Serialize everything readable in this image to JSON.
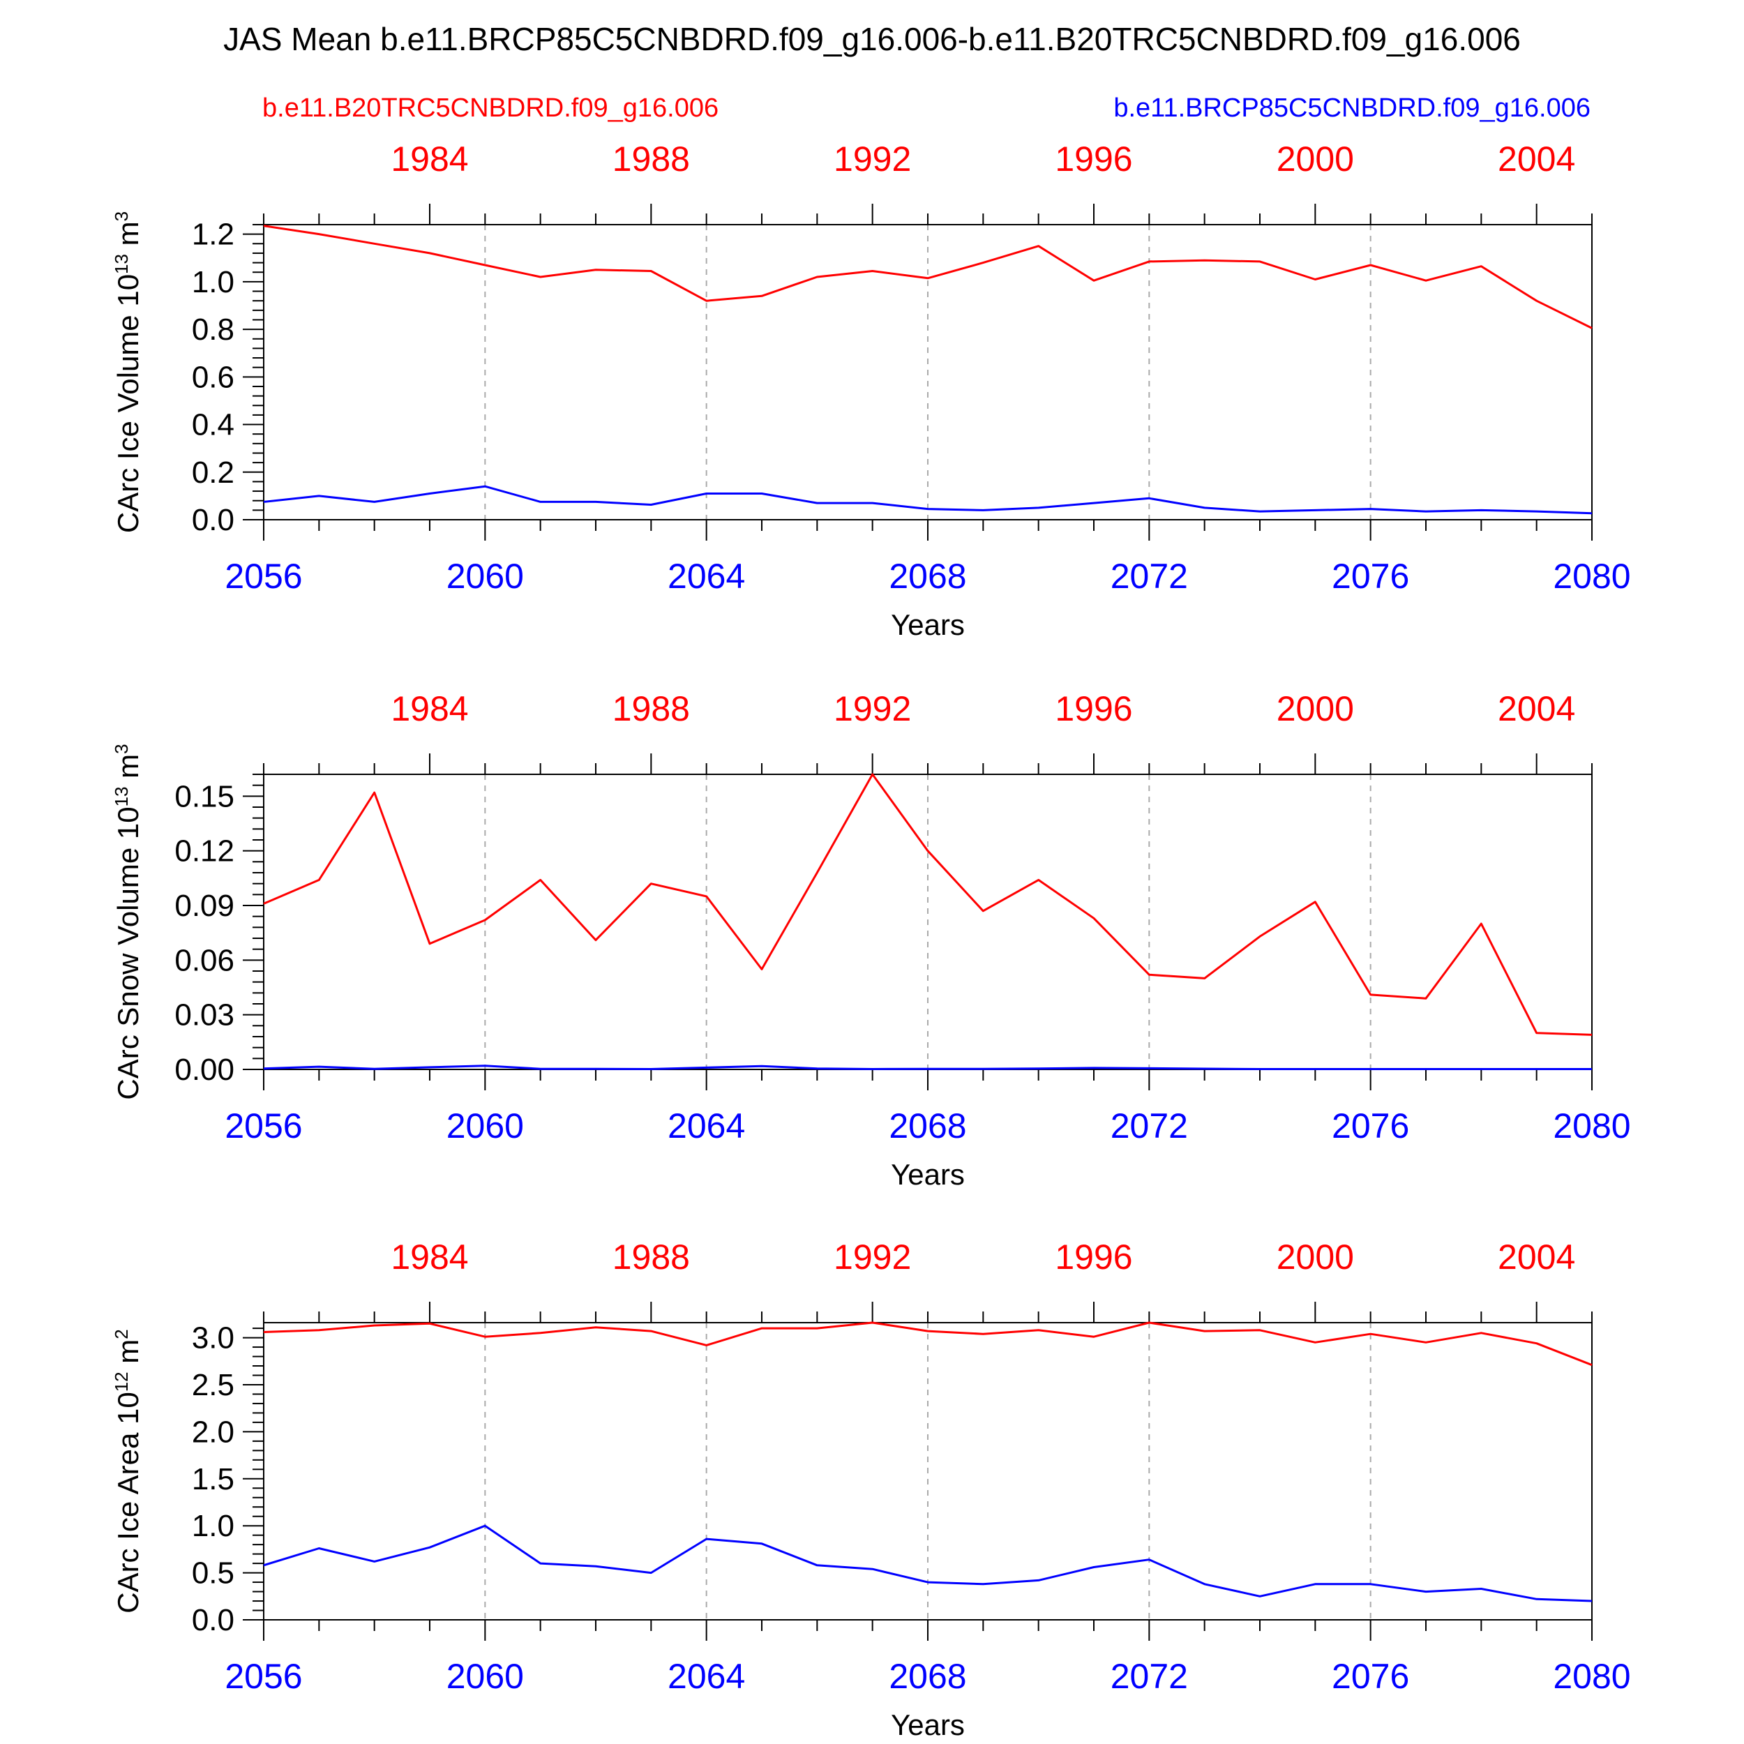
{
  "title": "JAS Mean b.e11.BRCP85C5CNBDRD.f09_g16.006-b.e11.B20TRC5CNBDRD.f09_g16.006",
  "legend": {
    "left": {
      "text": "b.e11.B20TRC5CNBDRD.f09_g16.006",
      "color": "#ff0000"
    },
    "right": {
      "text": "b.e11.BRCP85C5CNBDRD.f09_g16.006",
      "color": "#0000ff"
    }
  },
  "colors": {
    "red": "#ff0000",
    "blue": "#0000ff",
    "axis": "#000000",
    "grid": "#aaaaaa"
  },
  "chart_data": [
    {
      "type": "line",
      "ylabel": "CArc Ice Volume",
      "yunit": "10^13 m^3",
      "yunit_base": "10",
      "yunit_exp": "13",
      "yunit_tail": "m",
      "yunit_tail_exp": "3",
      "xlabel": "Years",
      "xlim": [
        2056,
        2080
      ],
      "ylim": [
        0,
        1.24
      ],
      "yticks": [
        "0.0",
        "0.2",
        "0.4",
        "0.6",
        "0.8",
        "1.0",
        "1.2"
      ],
      "ytick_values": [
        0,
        0.2,
        0.4,
        0.6,
        0.8,
        1.0,
        1.2
      ],
      "xticks_bottom": [
        "2056",
        "2060",
        "2064",
        "2068",
        "2072",
        "2076",
        "2080"
      ],
      "xtick_bottom_values": [
        2056,
        2060,
        2064,
        2068,
        2072,
        2076,
        2080
      ],
      "xticks_top": [
        "1984",
        "1988",
        "1992",
        "1996",
        "2000",
        "2004"
      ],
      "xtick_top_values": [
        1984,
        1988,
        1992,
        1996,
        2000,
        2004
      ],
      "top_axis_offset": 75,
      "x": [
        2056,
        2057,
        2058,
        2059,
        2060,
        2061,
        2062,
        2063,
        2064,
        2065,
        2066,
        2067,
        2068,
        2069,
        2070,
        2071,
        2072,
        2073,
        2074,
        2075,
        2076,
        2077,
        2078,
        2079,
        2080
      ],
      "series": [
        {
          "name": "b.e11.B20TRC5CNBDRD.f09_g16.006",
          "color": "#ff0000",
          "values": [
            1.235,
            1.2,
            1.16,
            1.12,
            1.07,
            1.02,
            1.05,
            1.045,
            0.92,
            0.94,
            1.02,
            1.045,
            1.015,
            1.08,
            1.15,
            1.005,
            1.085,
            1.09,
            1.085,
            1.01,
            1.07,
            1.005,
            1.065,
            0.92,
            0.805
          ]
        },
        {
          "name": "b.e11.BRCP85C5CNBDRD.f09_g16.006",
          "color": "#0000ff",
          "values": [
            0.075,
            0.1,
            0.075,
            0.11,
            0.14,
            0.075,
            0.075,
            0.063,
            0.11,
            0.11,
            0.07,
            0.07,
            0.045,
            0.04,
            0.05,
            0.07,
            0.09,
            0.05,
            0.035,
            0.04,
            0.045,
            0.035,
            0.04,
            0.035,
            0.027
          ]
        }
      ]
    },
    {
      "type": "line",
      "ylabel": "CArc Snow Volume",
      "yunit": "10^13 m^3",
      "yunit_base": "10",
      "yunit_exp": "13",
      "yunit_tail": "m",
      "yunit_tail_exp": "3",
      "xlabel": "Years",
      "xlim": [
        2056,
        2080
      ],
      "ylim": [
        0,
        0.162
      ],
      "yticks": [
        "0.00",
        "0.03",
        "0.06",
        "0.09",
        "0.12",
        "0.15"
      ],
      "ytick_values": [
        0,
        0.03,
        0.06,
        0.09,
        0.12,
        0.15
      ],
      "xticks_bottom": [
        "2056",
        "2060",
        "2064",
        "2068",
        "2072",
        "2076",
        "2080"
      ],
      "xtick_bottom_values": [
        2056,
        2060,
        2064,
        2068,
        2072,
        2076,
        2080
      ],
      "xticks_top": [
        "1984",
        "1988",
        "1992",
        "1996",
        "2000",
        "2004"
      ],
      "xtick_top_values": [
        1984,
        1988,
        1992,
        1996,
        2000,
        2004
      ],
      "top_axis_offset": 75,
      "x": [
        2056,
        2057,
        2058,
        2059,
        2060,
        2061,
        2062,
        2063,
        2064,
        2065,
        2066,
        2067,
        2068,
        2069,
        2070,
        2071,
        2072,
        2073,
        2074,
        2075,
        2076,
        2077,
        2078,
        2079,
        2080
      ],
      "series": [
        {
          "name": "b.e11.B20TRC5CNBDRD.f09_g16.006",
          "color": "#ff0000",
          "values": [
            0.091,
            0.104,
            0.152,
            0.069,
            0.082,
            0.104,
            0.071,
            0.102,
            0.095,
            0.055,
            0.108,
            0.162,
            0.12,
            0.087,
            0.104,
            0.083,
            0.052,
            0.05,
            0.073,
            0.092,
            0.041,
            0.039,
            0.08,
            0.02,
            0.019
          ]
        },
        {
          "name": "b.e11.BRCP85C5CNBDRD.f09_g16.006",
          "color": "#0000ff",
          "values": [
            0.0005,
            0.0015,
            0.0003,
            0.0012,
            0.002,
            0.0003,
            0.0003,
            0.0002,
            0.001,
            0.0018,
            0.0005,
            0.0002,
            0.0003,
            0.0003,
            0.0005,
            0.0008,
            0.0006,
            0.0004,
            0.0002,
            0.0002,
            0.0002,
            0.0002,
            0.0002,
            0.0002,
            0.0002
          ]
        }
      ]
    },
    {
      "type": "line",
      "ylabel": "CArc Ice Area",
      "yunit": "10^12 m^2",
      "yunit_base": "10",
      "yunit_exp": "12",
      "yunit_tail": "m",
      "yunit_tail_exp": "2",
      "xlabel": "Years",
      "xlim": [
        2056,
        2080
      ],
      "ylim": [
        0,
        3.16
      ],
      "yticks": [
        "0.0",
        "0.5",
        "1.0",
        "1.5",
        "2.0",
        "2.5",
        "3.0"
      ],
      "ytick_values": [
        0,
        0.5,
        1.0,
        1.5,
        2.0,
        2.5,
        3.0
      ],
      "xticks_bottom": [
        "2056",
        "2060",
        "2064",
        "2068",
        "2072",
        "2076",
        "2080"
      ],
      "xtick_bottom_values": [
        2056,
        2060,
        2064,
        2068,
        2072,
        2076,
        2080
      ],
      "xticks_top": [
        "1984",
        "1988",
        "1992",
        "1996",
        "2000",
        "2004"
      ],
      "xtick_top_values": [
        1984,
        1988,
        1992,
        1996,
        2000,
        2004
      ],
      "top_axis_offset": 75,
      "x": [
        2056,
        2057,
        2058,
        2059,
        2060,
        2061,
        2062,
        2063,
        2064,
        2065,
        2066,
        2067,
        2068,
        2069,
        2070,
        2071,
        2072,
        2073,
        2074,
        2075,
        2076,
        2077,
        2078,
        2079,
        2080
      ],
      "series": [
        {
          "name": "b.e11.B20TRC5CNBDRD.f09_g16.006",
          "color": "#ff0000",
          "values": [
            3.06,
            3.08,
            3.13,
            3.15,
            3.01,
            3.05,
            3.11,
            3.07,
            2.92,
            3.1,
            3.1,
            3.16,
            3.07,
            3.04,
            3.08,
            3.01,
            3.16,
            3.07,
            3.08,
            2.95,
            3.04,
            2.95,
            3.05,
            2.94,
            2.71
          ]
        },
        {
          "name": "b.e11.BRCP85C5CNBDRD.f09_g16.006",
          "color": "#0000ff",
          "values": [
            0.58,
            0.76,
            0.62,
            0.77,
            1.0,
            0.6,
            0.57,
            0.5,
            0.86,
            0.81,
            0.58,
            0.54,
            0.4,
            0.38,
            0.42,
            0.56,
            0.64,
            0.38,
            0.25,
            0.38,
            0.38,
            0.3,
            0.33,
            0.22,
            0.2
          ]
        }
      ]
    }
  ]
}
